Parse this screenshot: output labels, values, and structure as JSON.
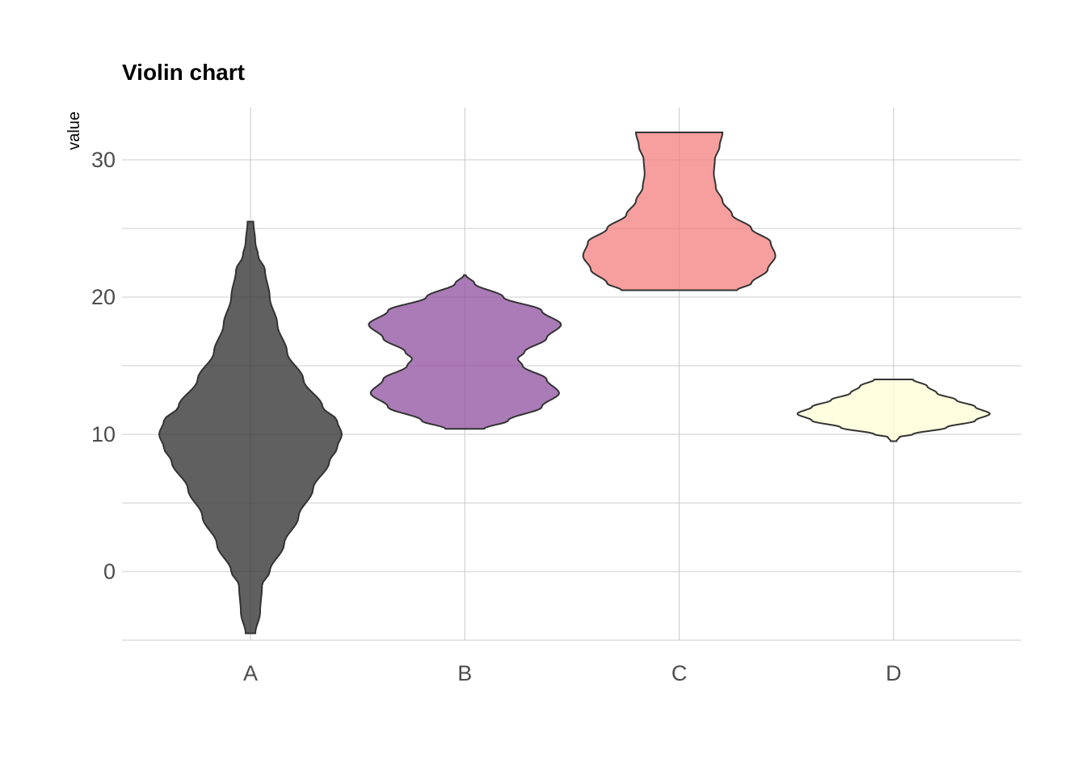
{
  "chart_data": {
    "type": "violin",
    "title": "Violin chart",
    "xlabel": "",
    "ylabel": "value",
    "categories": [
      "A",
      "B",
      "C",
      "D"
    ],
    "ylim": [
      -5,
      34
    ],
    "yticks": [
      0,
      10,
      20,
      30
    ],
    "grid": true,
    "legend": "none",
    "series": [
      {
        "category": "A",
        "color": "#2b2b2b",
        "min": -4.5,
        "max": 25.5,
        "profile": [
          [
            -4.5,
            0.05
          ],
          [
            -3,
            0.1
          ],
          [
            -1,
            0.12
          ],
          [
            0,
            0.2
          ],
          [
            2,
            0.35
          ],
          [
            4,
            0.5
          ],
          [
            6,
            0.65
          ],
          [
            8,
            0.82
          ],
          [
            9,
            0.9
          ],
          [
            10,
            0.95
          ],
          [
            11,
            0.9
          ],
          [
            12,
            0.75
          ],
          [
            14,
            0.55
          ],
          [
            16,
            0.38
          ],
          [
            18,
            0.28
          ],
          [
            20,
            0.2
          ],
          [
            22,
            0.15
          ],
          [
            23,
            0.08
          ],
          [
            24,
            0.05
          ],
          [
            25.5,
            0.03
          ]
        ]
      },
      {
        "category": "B",
        "color": "#8e4f9e",
        "min": 10.4,
        "max": 21.6,
        "profile": [
          [
            10.4,
            0.2
          ],
          [
            11,
            0.45
          ],
          [
            12,
            0.8
          ],
          [
            13,
            0.98
          ],
          [
            14,
            0.85
          ],
          [
            15,
            0.6
          ],
          [
            15.5,
            0.55
          ],
          [
            16,
            0.62
          ],
          [
            17,
            0.85
          ],
          [
            18,
            1.0
          ],
          [
            19,
            0.8
          ],
          [
            20,
            0.4
          ],
          [
            21,
            0.1
          ],
          [
            21.6,
            0.01
          ]
        ]
      },
      {
        "category": "C",
        "color": "#f47f7e",
        "min": 20.5,
        "max": 32,
        "profile": [
          [
            20.5,
            0.6
          ],
          [
            21,
            0.75
          ],
          [
            22,
            0.92
          ],
          [
            23,
            1.0
          ],
          [
            24,
            0.95
          ],
          [
            25,
            0.75
          ],
          [
            26,
            0.55
          ],
          [
            27,
            0.45
          ],
          [
            28,
            0.38
          ],
          [
            29,
            0.36
          ],
          [
            30,
            0.37
          ],
          [
            31,
            0.42
          ],
          [
            32,
            0.45
          ]
        ]
      },
      {
        "category": "D",
        "color": "#ffffd4",
        "min": 9.5,
        "max": 14,
        "profile": [
          [
            9.5,
            0.03
          ],
          [
            9.8,
            0.06
          ],
          [
            10,
            0.2
          ],
          [
            10.5,
            0.55
          ],
          [
            11,
            0.85
          ],
          [
            11.5,
            1.0
          ],
          [
            12,
            0.85
          ],
          [
            12.5,
            0.65
          ],
          [
            13,
            0.45
          ],
          [
            13.5,
            0.35
          ],
          [
            14,
            0.2
          ]
        ]
      }
    ]
  }
}
